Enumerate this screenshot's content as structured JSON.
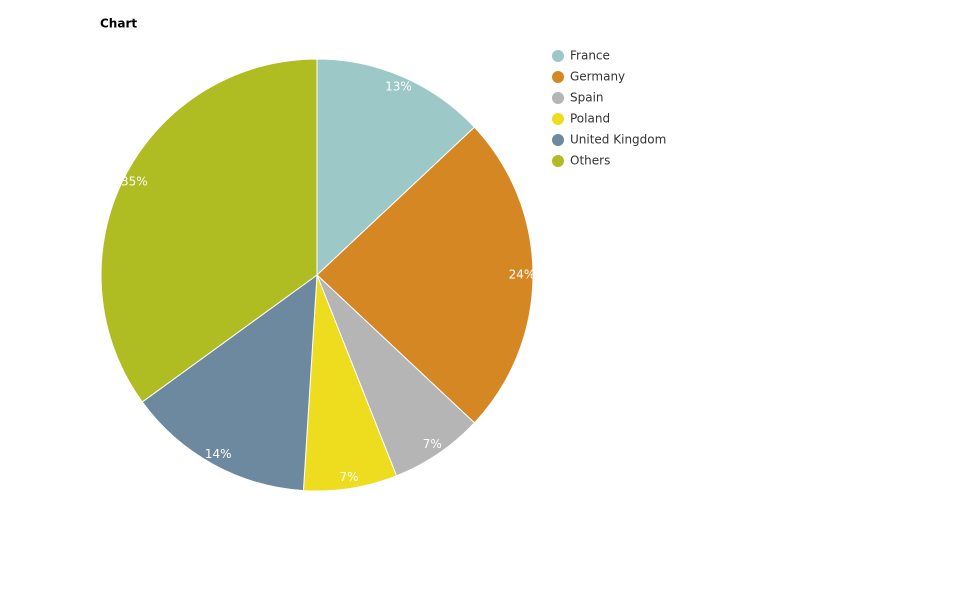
{
  "chart_data": {
    "type": "pie",
    "title": "Chart",
    "categories": [
      "France",
      "Germany",
      "Spain",
      "Poland",
      "United Kingdom",
      "Others"
    ],
    "values": [
      13,
      24,
      7,
      7,
      14,
      35
    ],
    "value_labels": [
      "13%",
      "24%",
      "7%",
      "7%",
      "14%",
      "35%"
    ],
    "colors": [
      "#9dc8c8",
      "#d58723",
      "#b5b5b5",
      "#eedc1f",
      "#6c89a0",
      "#afbc22"
    ],
    "legend": "top-right"
  }
}
